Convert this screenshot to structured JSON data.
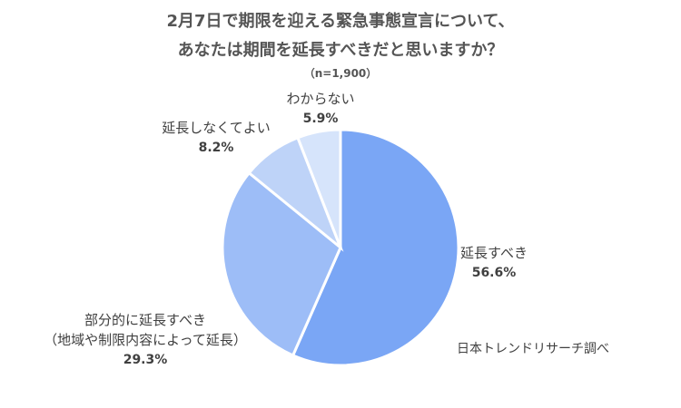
{
  "chart_data": {
    "type": "pie",
    "title_line1": "2月7日で期限を迎える緊急事態宣言について、",
    "title_line2": "あなたは期間を延長すべきだと思いますか？",
    "sample_size": "（n=1,900）",
    "slices": [
      {
        "label": "延長すべき",
        "value": 56.6,
        "value_text": "56.6%",
        "color": "#7aa6f5"
      },
      {
        "label": "部分的に延長すべき",
        "label2": "（地域や制限内容によって延長）",
        "value": 29.3,
        "value_text": "29.3%",
        "color": "#9dbdf7"
      },
      {
        "label": "延長しなくてよい",
        "value": 8.2,
        "value_text": "8.2%",
        "color": "#bed3f8"
      },
      {
        "label": "わからない",
        "value": 5.9,
        "value_text": "5.9%",
        "color": "#d6e4fb"
      }
    ],
    "source": "日本トレンドリサーチ調べ"
  }
}
